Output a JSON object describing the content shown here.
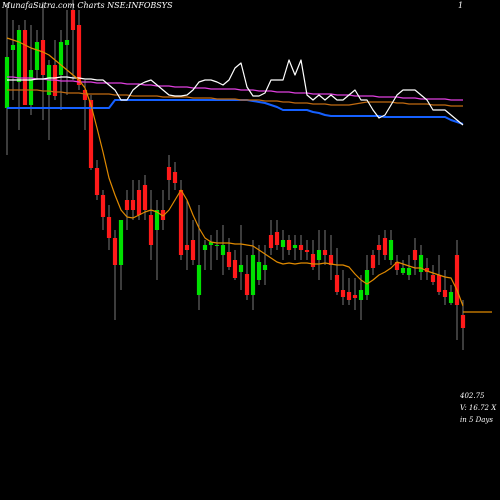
{
  "header": {
    "title": "MunafaSutra.com Charts NSE:INFOBSYS",
    "right_label": "1"
  },
  "info_box": {
    "price": "402.75",
    "volume": "V: 16.72  X",
    "period": "in 5 Days"
  },
  "colors": {
    "background": "#000000",
    "up_candle": "#00e000",
    "down_candle": "#ff1a1a",
    "wick": "#777777",
    "short_ma": "#e08a00",
    "magenta_ma": "#e040e0",
    "blue_ma": "#1560ff",
    "orange_ma": "#c06a10",
    "white_line": "#ffffff"
  },
  "chart_data": {
    "type": "candlestick",
    "ylim": [
      0,
      500
    ],
    "candles": [
      {
        "o": 392,
        "h": 497,
        "l": 345,
        "c": 443,
        "d": "up"
      },
      {
        "o": 455,
        "h": 480,
        "l": 400,
        "c": 450,
        "d": "up"
      },
      {
        "o": 418,
        "h": 475,
        "l": 370,
        "c": 470,
        "d": "up"
      },
      {
        "o": 470,
        "h": 480,
        "l": 400,
        "c": 395,
        "d": "down"
      },
      {
        "o": 395,
        "h": 475,
        "l": 385,
        "c": 430,
        "d": "up"
      },
      {
        "o": 430,
        "h": 470,
        "l": 420,
        "c": 458,
        "d": "up"
      },
      {
        "o": 460,
        "h": 498,
        "l": 380,
        "c": 425,
        "d": "down"
      },
      {
        "o": 405,
        "h": 440,
        "l": 360,
        "c": 435,
        "d": "up"
      },
      {
        "o": 435,
        "h": 460,
        "l": 400,
        "c": 404,
        "d": "down"
      },
      {
        "o": 425,
        "h": 470,
        "l": 390,
        "c": 458,
        "d": "up"
      },
      {
        "o": 455,
        "h": 490,
        "l": 405,
        "c": 460,
        "d": "up"
      },
      {
        "o": 490,
        "h": 500,
        "l": 420,
        "c": 470,
        "d": "down"
      },
      {
        "o": 475,
        "h": 490,
        "l": 410,
        "c": 415,
        "d": "down"
      },
      {
        "o": 410,
        "h": 420,
        "l": 370,
        "c": 400,
        "d": "down"
      },
      {
        "o": 400,
        "h": 405,
        "l": 330,
        "c": 332,
        "d": "down"
      },
      {
        "o": 332,
        "h": 340,
        "l": 300,
        "c": 305,
        "d": "down"
      },
      {
        "o": 305,
        "h": 310,
        "l": 270,
        "c": 283,
        "d": "down"
      },
      {
        "o": 283,
        "h": 295,
        "l": 250,
        "c": 262,
        "d": "down"
      },
      {
        "o": 262,
        "h": 270,
        "l": 180,
        "c": 235,
        "d": "down"
      },
      {
        "o": 235,
        "h": 280,
        "l": 210,
        "c": 280,
        "d": "up"
      },
      {
        "o": 300,
        "h": 310,
        "l": 270,
        "c": 290,
        "d": "down"
      },
      {
        "o": 300,
        "h": 320,
        "l": 280,
        "c": 290,
        "d": "down"
      },
      {
        "o": 310,
        "h": 320,
        "l": 280,
        "c": 285,
        "d": "down"
      },
      {
        "o": 315,
        "h": 325,
        "l": 280,
        "c": 290,
        "d": "down"
      },
      {
        "o": 285,
        "h": 310,
        "l": 240,
        "c": 255,
        "d": "down"
      },
      {
        "o": 270,
        "h": 300,
        "l": 220,
        "c": 290,
        "d": "up"
      },
      {
        "o": 290,
        "h": 310,
        "l": 270,
        "c": 280,
        "d": "down"
      },
      {
        "o": 333,
        "h": 345,
        "l": 300,
        "c": 320,
        "d": "down"
      },
      {
        "o": 328,
        "h": 338,
        "l": 310,
        "c": 317,
        "d": "down"
      },
      {
        "o": 310,
        "h": 320,
        "l": 240,
        "c": 245,
        "d": "down"
      },
      {
        "o": 255,
        "h": 300,
        "l": 230,
        "c": 250,
        "d": "down"
      },
      {
        "o": 260,
        "h": 280,
        "l": 235,
        "c": 240,
        "d": "down"
      },
      {
        "o": 235,
        "h": 295,
        "l": 190,
        "c": 205,
        "d": "up"
      },
      {
        "o": 250,
        "h": 260,
        "l": 230,
        "c": 255,
        "d": "up"
      },
      {
        "o": 255,
        "h": 265,
        "l": 230,
        "c": 258,
        "d": "up"
      },
      {
        "o": 255,
        "h": 270,
        "l": 240,
        "c": 254,
        "d": "up"
      },
      {
        "o": 245,
        "h": 275,
        "l": 225,
        "c": 255,
        "d": "up"
      },
      {
        "o": 248,
        "h": 262,
        "l": 230,
        "c": 233,
        "d": "down"
      },
      {
        "o": 240,
        "h": 250,
        "l": 220,
        "c": 222,
        "d": "down"
      },
      {
        "o": 235,
        "h": 275,
        "l": 210,
        "c": 228,
        "d": "up"
      },
      {
        "o": 226,
        "h": 245,
        "l": 200,
        "c": 205,
        "d": "down"
      },
      {
        "o": 205,
        "h": 260,
        "l": 190,
        "c": 245,
        "d": "up"
      },
      {
        "o": 238,
        "h": 255,
        "l": 215,
        "c": 220,
        "d": "up"
      },
      {
        "o": 230,
        "h": 255,
        "l": 215,
        "c": 235,
        "d": "up"
      },
      {
        "o": 265,
        "h": 280,
        "l": 245,
        "c": 252,
        "d": "down"
      },
      {
        "o": 268,
        "h": 280,
        "l": 250,
        "c": 255,
        "d": "down"
      },
      {
        "o": 260,
        "h": 270,
        "l": 240,
        "c": 253,
        "d": "up"
      },
      {
        "o": 260,
        "h": 265,
        "l": 245,
        "c": 250,
        "d": "down"
      },
      {
        "o": 252,
        "h": 265,
        "l": 240,
        "c": 255,
        "d": "up"
      },
      {
        "o": 255,
        "h": 265,
        "l": 240,
        "c": 250,
        "d": "down"
      },
      {
        "o": 250,
        "h": 260,
        "l": 240,
        "c": 248,
        "d": "down"
      },
      {
        "o": 246,
        "h": 260,
        "l": 230,
        "c": 233,
        "d": "down"
      },
      {
        "o": 240,
        "h": 270,
        "l": 220,
        "c": 250,
        "d": "up"
      },
      {
        "o": 250,
        "h": 270,
        "l": 235,
        "c": 245,
        "d": "down"
      },
      {
        "o": 245,
        "h": 265,
        "l": 220,
        "c": 235,
        "d": "down"
      },
      {
        "o": 225,
        "h": 252,
        "l": 205,
        "c": 208,
        "d": "down"
      },
      {
        "o": 210,
        "h": 230,
        "l": 195,
        "c": 203,
        "d": "down"
      },
      {
        "o": 208,
        "h": 222,
        "l": 195,
        "c": 200,
        "d": "down"
      },
      {
        "o": 205,
        "h": 222,
        "l": 190,
        "c": 202,
        "d": "down"
      },
      {
        "o": 200,
        "h": 225,
        "l": 180,
        "c": 210,
        "d": "up"
      },
      {
        "o": 230,
        "h": 245,
        "l": 200,
        "c": 205,
        "d": "up"
      },
      {
        "o": 245,
        "h": 250,
        "l": 225,
        "c": 232,
        "d": "down"
      },
      {
        "o": 255,
        "h": 265,
        "l": 235,
        "c": 250,
        "d": "down"
      },
      {
        "o": 262,
        "h": 270,
        "l": 240,
        "c": 245,
        "d": "down"
      },
      {
        "o": 260,
        "h": 270,
        "l": 235,
        "c": 240,
        "d": "up"
      },
      {
        "o": 238,
        "h": 245,
        "l": 225,
        "c": 230,
        "d": "down"
      },
      {
        "o": 232,
        "h": 240,
        "l": 225,
        "c": 227,
        "d": "up"
      },
      {
        "o": 232,
        "h": 245,
        "l": 220,
        "c": 225,
        "d": "up"
      },
      {
        "o": 240,
        "h": 262,
        "l": 225,
        "c": 250,
        "d": "down"
      },
      {
        "o": 245,
        "h": 255,
        "l": 220,
        "c": 228,
        "d": "up"
      },
      {
        "o": 232,
        "h": 242,
        "l": 220,
        "c": 228,
        "d": "down"
      },
      {
        "o": 225,
        "h": 235,
        "l": 215,
        "c": 218,
        "d": "down"
      },
      {
        "o": 225,
        "h": 245,
        "l": 205,
        "c": 208,
        "d": "down"
      },
      {
        "o": 210,
        "h": 230,
        "l": 195,
        "c": 203,
        "d": "down"
      },
      {
        "o": 208,
        "h": 215,
        "l": 195,
        "c": 197,
        "d": "up"
      },
      {
        "o": 245,
        "h": 260,
        "l": 160,
        "c": 195,
        "d": "down"
      },
      {
        "o": 185,
        "h": 200,
        "l": 150,
        "c": 172,
        "d": "down"
      }
    ],
    "lines": [
      {
        "name": "",
        "color": "#e040e0",
        "values": [
          423,
          423,
          422,
          422,
          422,
          421,
          421,
          420,
          420,
          419,
          419,
          419,
          418,
          418,
          418,
          417,
          417,
          417,
          417,
          417,
          416,
          416,
          416,
          415,
          415,
          414,
          414,
          414,
          413,
          413,
          413,
          412,
          412,
          412,
          411,
          411,
          411,
          411,
          411,
          410,
          410,
          410,
          409,
          409,
          409,
          408,
          408,
          408,
          407,
          407,
          407,
          406,
          406,
          406,
          406,
          405,
          405,
          405,
          404,
          404,
          404,
          404,
          403,
          403,
          403,
          403,
          402,
          402,
          402,
          401,
          401,
          401,
          401,
          401,
          400,
          400,
          400
        ]
      },
      {
        "name": "",
        "color": "#1560ff",
        "values": [
          392,
          392,
          392,
          392,
          392,
          392,
          392,
          392,
          392,
          392,
          392,
          392,
          392,
          392,
          392,
          392,
          392,
          392,
          400,
          400,
          400,
          400,
          400,
          400,
          400,
          400,
          400,
          400,
          400,
          400,
          400,
          400,
          400,
          400,
          400,
          400,
          400,
          400,
          400,
          400,
          400,
          399,
          398,
          397,
          395,
          393,
          390,
          390,
          390,
          390,
          390,
          388,
          387,
          385,
          384,
          384,
          384,
          384,
          384,
          384,
          384,
          384,
          384,
          383,
          383,
          383,
          383,
          383,
          383,
          383,
          383,
          383,
          383,
          383,
          380,
          378,
          376
        ]
      },
      {
        "name": "",
        "color": "#c06a10",
        "values": [
          410,
          410,
          410,
          410,
          410,
          410,
          409,
          409,
          408,
          408,
          407,
          407,
          407,
          406,
          406,
          406,
          406,
          406,
          405,
          405,
          405,
          404,
          404,
          404,
          404,
          404,
          403,
          403,
          403,
          403,
          403,
          402,
          402,
          402,
          402,
          401,
          401,
          401,
          401,
          400,
          400,
          400,
          400,
          399,
          399,
          399,
          398,
          398,
          397,
          397,
          397,
          396,
          396,
          396,
          395,
          395,
          395,
          395,
          396,
          397,
          398,
          398,
          398,
          398,
          398,
          397,
          397,
          396,
          396,
          396,
          396,
          395,
          395,
          395,
          394,
          394,
          394
        ]
      },
      {
        "name": "",
        "color": "#ffffff",
        "values": [
          420,
          420,
          420,
          420,
          420,
          421,
          421,
          422,
          422,
          423,
          423,
          422,
          422,
          421,
          421,
          420,
          420,
          415,
          410,
          400,
          400,
          410,
          415,
          418,
          420,
          415,
          410,
          405,
          404,
          404,
          405,
          410,
          418,
          420,
          420,
          418,
          415,
          420,
          432,
          437,
          413,
          404,
          404,
          407,
          420,
          420,
          420,
          440,
          425,
          440,
          405,
          400,
          405,
          400,
          405,
          400,
          400,
          405,
          410,
          400,
          400,
          390,
          382,
          385,
          395,
          405,
          410,
          410,
          410,
          405,
          400,
          390,
          390,
          390,
          385,
          380,
          375
        ]
      },
      {
        "name": "",
        "color": "#e08a00",
        "values": [
          462,
          460,
          458,
          455,
          452,
          450,
          448,
          445,
          440,
          435,
          430,
          425,
          420,
          412,
          395,
          372,
          348,
          322,
          305,
          290,
          283,
          282,
          285,
          288,
          290,
          288,
          284,
          290,
          300,
          310,
          300,
          285,
          272,
          262,
          258,
          257,
          257,
          257,
          256,
          256,
          255,
          254,
          250,
          246,
          242,
          238,
          236,
          237,
          236,
          237,
          237,
          236,
          236,
          237,
          236,
          235,
          235,
          233,
          226,
          220,
          216,
          220,
          225,
          228,
          232,
          238,
          236,
          234,
          232,
          232,
          229,
          227,
          225,
          223,
          222,
          210,
          194
        ]
      }
    ],
    "last_value_marker": 188
  }
}
